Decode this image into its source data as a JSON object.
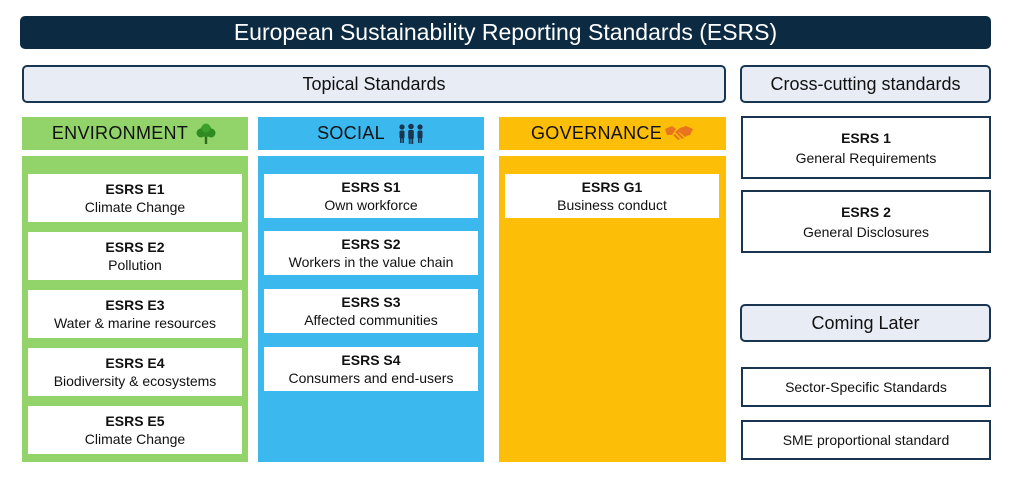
{
  "title": "European Sustainability Reporting Standards (ESRS)",
  "topical_label": "Topical Standards",
  "cross_cutting_label": "Cross-cutting standards",
  "coming_later_label": "Coming Later",
  "categories": {
    "environment": {
      "label": "ENVIRONMENT",
      "icon": "tree-icon",
      "color": "#92d36a",
      "standards": [
        {
          "code": "ESRS E1",
          "name": "Climate Change"
        },
        {
          "code": "ESRS E2",
          "name": "Pollution"
        },
        {
          "code": "ESRS E3",
          "name": "Water & marine resources"
        },
        {
          "code": "ESRS E4",
          "name": "Biodiversity & ecosystems"
        },
        {
          "code": "ESRS E5",
          "name": "Climate Change"
        }
      ]
    },
    "social": {
      "label": "SOCIAL",
      "icon": "people-icon",
      "color": "#3bb8ee",
      "standards": [
        {
          "code": "ESRS S1",
          "name": "Own workforce"
        },
        {
          "code": "ESRS S2",
          "name": "Workers in the value chain"
        },
        {
          "code": "ESRS S3",
          "name": "Affected communities"
        },
        {
          "code": "ESRS S4",
          "name": "Consumers and end-users"
        }
      ]
    },
    "governance": {
      "label": "GOVERNANCE",
      "icon": "handshake-icon",
      "color": "#fcbe06",
      "standards": [
        {
          "code": "ESRS G1",
          "name": "Business conduct"
        }
      ]
    }
  },
  "cross_cutting": [
    {
      "code": "ESRS 1",
      "name": "General Requirements"
    },
    {
      "code": "ESRS 2",
      "name": "General Disclosures"
    }
  ],
  "coming_later": [
    "Sector-Specific Standards",
    "SME proportional standard"
  ],
  "colors": {
    "title_bg": "#0c2b43",
    "pill_bg": "#e8edf5",
    "border": "#1a3550"
  }
}
